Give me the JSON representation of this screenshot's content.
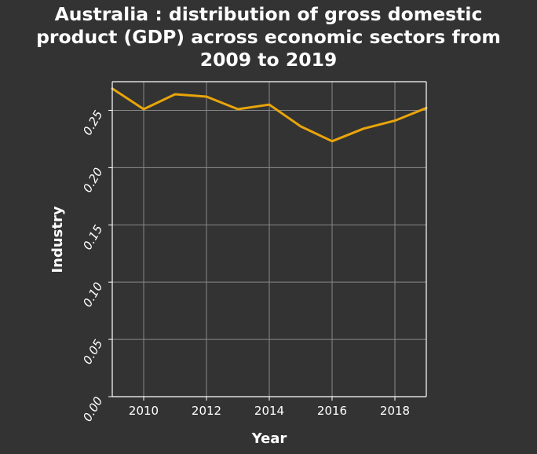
{
  "chart_data": {
    "type": "line",
    "title_lines": [
      "Australia : distribution of gross domestic",
      "product (GDP) across economic sectors from",
      "2009 to 2019"
    ],
    "xlabel": "Year",
    "ylabel": "Industry",
    "xlim": [
      2009,
      2019
    ],
    "ylim": [
      0,
      0.275
    ],
    "x_ticks": [
      2010,
      2012,
      2014,
      2016,
      2018
    ],
    "y_ticks": [
      0.0,
      0.05,
      0.1,
      0.15,
      0.2,
      0.25
    ],
    "y_tick_labels": [
      "0.00",
      "0.05",
      "0.10",
      "0.15",
      "0.20",
      "0.25"
    ],
    "grid": true,
    "series": [
      {
        "color": "#E8A50A",
        "x": [
          2009,
          2010,
          2011,
          2012,
          2013,
          2014,
          2015,
          2016,
          2017,
          2018,
          2019
        ],
        "y": [
          0.269,
          0.251,
          0.264,
          0.262,
          0.251,
          0.255,
          0.236,
          0.223,
          0.234,
          0.241,
          0.252
        ]
      }
    ]
  },
  "colors": {
    "background": "#333333",
    "grid": "#888888",
    "axes": "#ffffff",
    "line": "#E8A50A"
  }
}
